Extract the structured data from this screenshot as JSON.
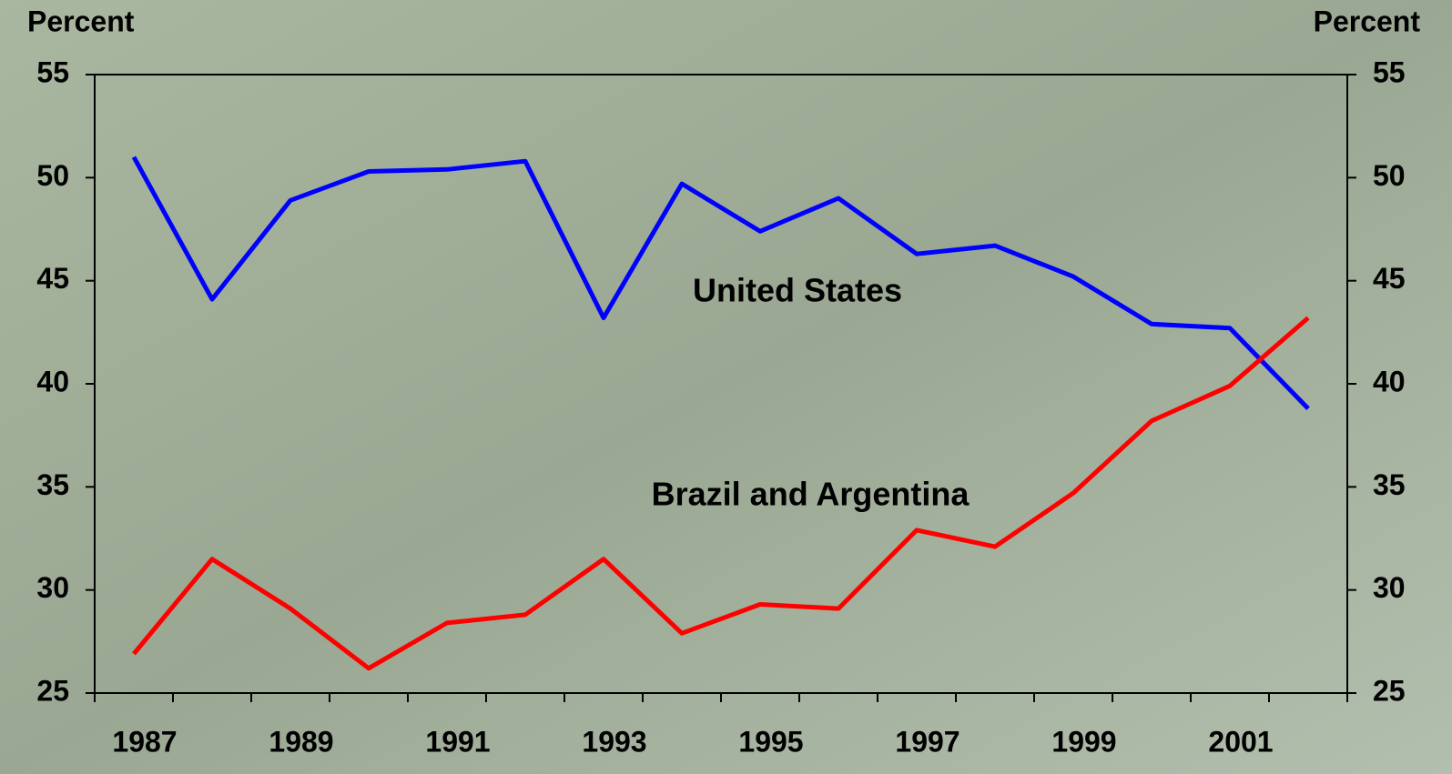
{
  "chart_data": {
    "type": "line",
    "y_label": "Percent",
    "y2_label": "Percent",
    "categories": [
      "1987",
      null,
      "1989",
      null,
      "1991",
      null,
      "1993",
      null,
      "1995",
      null,
      "1997",
      null,
      "1999",
      null,
      "2001",
      null
    ],
    "series": [
      {
        "name": "United States",
        "color": "#0000ff",
        "values": [
          51.0,
          44.1,
          48.9,
          50.3,
          50.4,
          50.8,
          43.2,
          49.7,
          47.4,
          49.0,
          46.3,
          46.7,
          45.2,
          42.9,
          42.7,
          38.8
        ]
      },
      {
        "name": "Brazil and Argentina",
        "color": "#ff0000",
        "values": [
          26.9,
          31.5,
          29.1,
          26.2,
          28.4,
          28.8,
          31.5,
          27.9,
          29.3,
          29.1,
          32.9,
          32.1,
          34.7,
          38.2,
          39.9,
          43.2
        ]
      }
    ],
    "ylim": [
      25,
      55
    ],
    "yticks": [
      25,
      30,
      35,
      40,
      45,
      50,
      55
    ],
    "y2lim": [
      25,
      55
    ],
    "y2ticks": [
      25,
      30,
      35,
      40,
      45,
      50,
      55
    ]
  }
}
